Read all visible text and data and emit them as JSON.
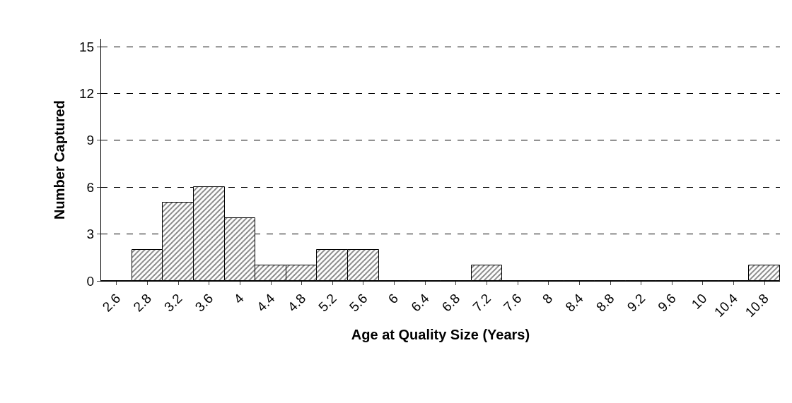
{
  "chart_data": {
    "type": "bar",
    "xlabel": "Age at Quality Size (Years)",
    "ylabel": "Number Captured",
    "categories": [
      "2.6",
      "2.8",
      "3.2",
      "3.6",
      "4",
      "4.4",
      "4.8",
      "5.2",
      "5.6",
      "6",
      "6.4",
      "6.8",
      "7.2",
      "7.6",
      "8",
      "8.4",
      "8.8",
      "9.2",
      "9.6",
      "10",
      "10.4",
      "10.8"
    ],
    "values": [
      0,
      2,
      5,
      6,
      4,
      1,
      1,
      2,
      2,
      0,
      0,
      0,
      1,
      0,
      0,
      0,
      0,
      0,
      0,
      0,
      0,
      1
    ],
    "color": "#000000",
    "ylim": [
      0,
      15.5
    ],
    "yticks": [
      0,
      3,
      6,
      9,
      12,
      15
    ],
    "grid": "y",
    "legend": false
  }
}
